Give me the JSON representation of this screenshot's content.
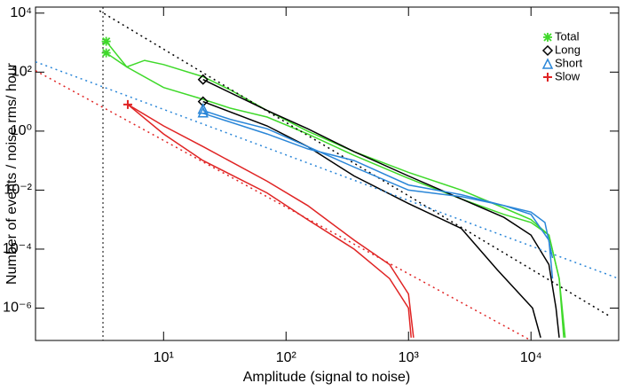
{
  "chart_data": {
    "type": "line",
    "x_label": "Amplitude (signal to noise)",
    "y_label": "Number of events / noise rms/ hour",
    "log_x": true,
    "log_y": true,
    "xlim": [
      0.9,
      52000
    ],
    "ylim": [
      8e-08,
      16000
    ],
    "xticks": [
      {
        "value": 10,
        "label": "10¹"
      },
      {
        "value": 100,
        "label": "10²"
      },
      {
        "value": 1000,
        "label": "10³"
      },
      {
        "value": 10000,
        "label": "10⁴"
      }
    ],
    "yticks": [
      {
        "value": 1e-06,
        "label": "10⁻⁶"
      },
      {
        "value": 0.0001,
        "label": "10⁻⁴"
      },
      {
        "value": 0.01,
        "label": "10⁻²"
      },
      {
        "value": 1,
        "label": "10⁰"
      },
      {
        "value": 100,
        "label": "10²"
      },
      {
        "value": 10000,
        "label": "10⁴"
      }
    ],
    "threshold_x": 3.2,
    "threshold_color": "#000000",
    "legend": "upper right",
    "series": [
      {
        "name": "Total",
        "color": "#3fd92a",
        "symbol": "asterisk",
        "markers": {
          "x": [
            3.4,
            3.4
          ],
          "values": [
            1100,
            450
          ]
        },
        "lines": [
          {
            "x": [
              3.4,
              5,
              7,
              10,
              21,
              35,
              70,
              150,
              360,
              1000,
              2700,
              6000,
              10000,
              14000,
              17000,
              18500
            ],
            "values": [
              1100,
              150,
              250,
              180,
              70,
              25,
              5,
              1,
              0.2,
              0.04,
              0.01,
              0.0025,
              0.001,
              0.0003,
              1e-05,
              1e-07
            ]
          },
          {
            "x": [
              3.4,
              5,
              10,
              21,
              35,
              70,
              150,
              360,
              1000,
              2700,
              6000,
              10000,
              14000,
              17000,
              19000
            ],
            "values": [
              450,
              150,
              30,
              12,
              6,
              3,
              0.8,
              0.15,
              0.025,
              0.005,
              0.0015,
              0.0008,
              0.0003,
              1e-05,
              1e-07
            ]
          }
        ]
      },
      {
        "name": "Long",
        "color": "#000000",
        "symbol": "diamond",
        "markers": {
          "x": [
            21,
            21
          ],
          "values": [
            56,
            10
          ]
        },
        "lines": [
          {
            "x": [
              21,
              70,
              150,
              360,
              1000,
              2700,
              6000,
              10000,
              14000,
              16000,
              17000
            ],
            "values": [
              56,
              5,
              1.2,
              0.2,
              0.03,
              0.005,
              0.0012,
              0.0003,
              3e-05,
              1e-06,
              1e-07
            ]
          },
          {
            "x": [
              21,
              70,
              150,
              360,
              1000,
              2700,
              5300,
              10300,
              12000
            ],
            "values": [
              10,
              1.5,
              0.3,
              0.03,
              0.0035,
              0.0005,
              2e-05,
              1e-06,
              1e-07
            ]
          }
        ],
        "fit": {
          "x": [
            3,
            45000
          ],
          "values": [
            12000,
            5e-07
          ]
        }
      },
      {
        "name": "Short",
        "color": "#2a86d8",
        "symbol": "triangle",
        "markers": {
          "x": [
            21,
            21
          ],
          "values": [
            5.7,
            4.3
          ]
        },
        "lines": [
          {
            "x": [
              21,
              35,
              70,
              150,
              360,
              1000,
              2700,
              6000,
              10000,
              14000,
              15000
            ],
            "values": [
              5,
              2.5,
              1.2,
              0.3,
              0.06,
              0.01,
              0.006,
              0.003,
              0.0015,
              0.0002,
              1e-05
            ]
          },
          {
            "x": [
              21,
              70,
              150,
              360,
              1000,
              2700,
              6000,
              10000,
              13000,
              15000
            ],
            "values": [
              4,
              0.8,
              0.25,
              0.1,
              0.015,
              0.007,
              0.003,
              0.0018,
              0.0008,
              5e-05
            ]
          }
        ],
        "fit": {
          "x": [
            0.9,
            52000
          ],
          "values": [
            224,
            1e-05
          ]
        }
      },
      {
        "name": "Slow",
        "color": "#e02424",
        "symbol": "plus",
        "markers": {
          "x": [
            5.1
          ],
          "values": [
            8
          ]
        },
        "lines": [
          {
            "x": [
              5.1,
              10,
              21,
              70,
              150,
              360,
              700,
              1000,
              1100
            ],
            "values": [
              8,
              1.5,
              0.3,
              0.02,
              0.003,
              0.0002,
              3e-05,
              3e-06,
              1e-07
            ]
          },
          {
            "x": [
              5.1,
              10,
              21,
              70,
              150,
              360,
              700,
              1000,
              1050
            ],
            "values": [
              8,
              0.8,
              0.1,
              0.008,
              0.001,
              0.0001,
              1e-05,
              1e-06,
              1e-07
            ]
          }
        ],
        "fit": {
          "x": [
            0.9,
            10000
          ],
          "values": [
            112,
            8e-08
          ]
        }
      }
    ]
  }
}
